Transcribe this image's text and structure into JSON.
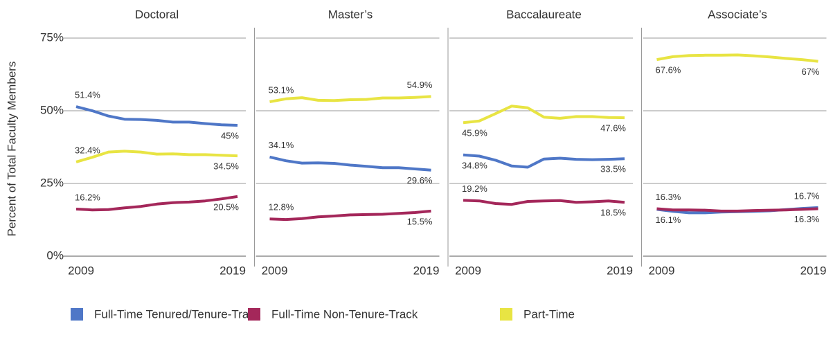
{
  "chart_data": {
    "type": "line",
    "ylabel": "Percent of Total Faculty Members",
    "ylim": [
      0,
      75
    ],
    "yticks": [
      {
        "value": 0,
        "label": "0%"
      },
      {
        "value": 25,
        "label": "25%"
      },
      {
        "value": 50,
        "label": "50%"
      },
      {
        "value": 75,
        "label": "75%"
      }
    ],
    "xlim": [
      2009,
      2019
    ],
    "xticks": [
      2009,
      2019
    ],
    "x": [
      2009,
      2010,
      2011,
      2012,
      2013,
      2014,
      2015,
      2016,
      2017,
      2018,
      2019
    ],
    "grid": true,
    "series": [
      {
        "name": "Full-Time Tenured/Tenure-Track",
        "color": "#4f77c7"
      },
      {
        "name": "Full-Time Non-Tenure-Track",
        "color": "#a4275a"
      },
      {
        "name": "Part-Time",
        "color": "#e8e443"
      }
    ],
    "panels": [
      {
        "title": "Doctoral",
        "series": [
          {
            "values": [
              51.4,
              50,
              48.2,
              47.1,
              47,
              46.7,
              46.1,
              46.1,
              45.6,
              45.2,
              45
            ],
            "value_labels": [
              "51.4%",
              null,
              null,
              null,
              null,
              null,
              null,
              null,
              null,
              null,
              "45%"
            ]
          },
          {
            "values": [
              16.2,
              15.9,
              16,
              16.6,
              17.1,
              17.9,
              18.4,
              18.6,
              19,
              19.7,
              20.5
            ],
            "value_labels": [
              "16.2%",
              null,
              null,
              null,
              null,
              null,
              null,
              null,
              null,
              null,
              "20.5%"
            ]
          },
          {
            "values": [
              32.4,
              34,
              35.8,
              36.1,
              35.8,
              35.1,
              35.2,
              34.9,
              34.9,
              34.7,
              34.5
            ],
            "value_labels": [
              "32.4%",
              null,
              null,
              null,
              null,
              null,
              null,
              null,
              null,
              null,
              "34.5%"
            ]
          }
        ]
      },
      {
        "title": "Master’s",
        "series": [
          {
            "values": [
              34.1,
              32.8,
              32,
              32.1,
              31.9,
              31.3,
              30.9,
              30.4,
              30.4,
              30,
              29.6
            ],
            "value_labels": [
              "34.1%",
              null,
              null,
              null,
              null,
              null,
              null,
              null,
              null,
              null,
              "29.6%"
            ]
          },
          {
            "values": [
              12.8,
              12.6,
              12.9,
              13.5,
              13.8,
              14.2,
              14.3,
              14.4,
              14.7,
              15,
              15.5
            ],
            "value_labels": [
              "12.8%",
              null,
              null,
              null,
              null,
              null,
              null,
              null,
              null,
              null,
              "15.5%"
            ]
          },
          {
            "values": [
              53.1,
              54.1,
              54.5,
              53.6,
              53.5,
              53.8,
              53.9,
              54.4,
              54.4,
              54.6,
              54.9
            ],
            "value_labels": [
              "53.1%",
              null,
              null,
              null,
              null,
              null,
              null,
              null,
              null,
              null,
              "54.9%"
            ]
          }
        ]
      },
      {
        "title": "Baccalaureate",
        "series": [
          {
            "values": [
              34.8,
              34.4,
              33,
              31,
              30.6,
              33.4,
              33.7,
              33.3,
              33.2,
              33.3,
              33.5
            ],
            "value_labels": [
              "34.8%",
              null,
              null,
              null,
              null,
              null,
              null,
              null,
              null,
              null,
              "33.5%"
            ]
          },
          {
            "values": [
              19.2,
              19,
              18.1,
              17.8,
              18.8,
              19,
              19.1,
              18.5,
              18.7,
              19,
              18.5
            ],
            "value_labels": [
              "19.2%",
              null,
              null,
              null,
              null,
              null,
              null,
              null,
              null,
              null,
              "18.5%"
            ]
          },
          {
            "values": [
              45.9,
              46.5,
              49,
              51.6,
              51,
              47.8,
              47.4,
              48,
              48,
              47.7,
              47.6
            ],
            "value_labels": [
              "45.9%",
              null,
              null,
              null,
              null,
              null,
              null,
              null,
              null,
              null,
              "47.6%"
            ]
          }
        ]
      },
      {
        "title": "Associate’s",
        "series": [
          {
            "values": [
              16.1,
              15.4,
              14.9,
              14.9,
              15.2,
              15.3,
              15.4,
              15.6,
              16,
              16.4,
              16.7
            ],
            "value_labels": [
              "16.1%",
              null,
              null,
              null,
              null,
              null,
              null,
              null,
              null,
              null,
              "16.7%"
            ]
          },
          {
            "values": [
              16.3,
              15.9,
              15.9,
              15.8,
              15.5,
              15.5,
              15.7,
              15.8,
              15.9,
              16.1,
              16.3
            ],
            "value_labels": [
              "16.3%",
              null,
              null,
              null,
              null,
              null,
              null,
              null,
              null,
              null,
              "16.3%"
            ]
          },
          {
            "values": [
              67.6,
              68.6,
              69,
              69.1,
              69.1,
              69.2,
              68.9,
              68.5,
              68,
              67.6,
              67
            ],
            "value_labels": [
              "67.6%",
              null,
              null,
              null,
              null,
              null,
              null,
              null,
              null,
              null,
              "67%"
            ]
          }
        ]
      }
    ]
  }
}
